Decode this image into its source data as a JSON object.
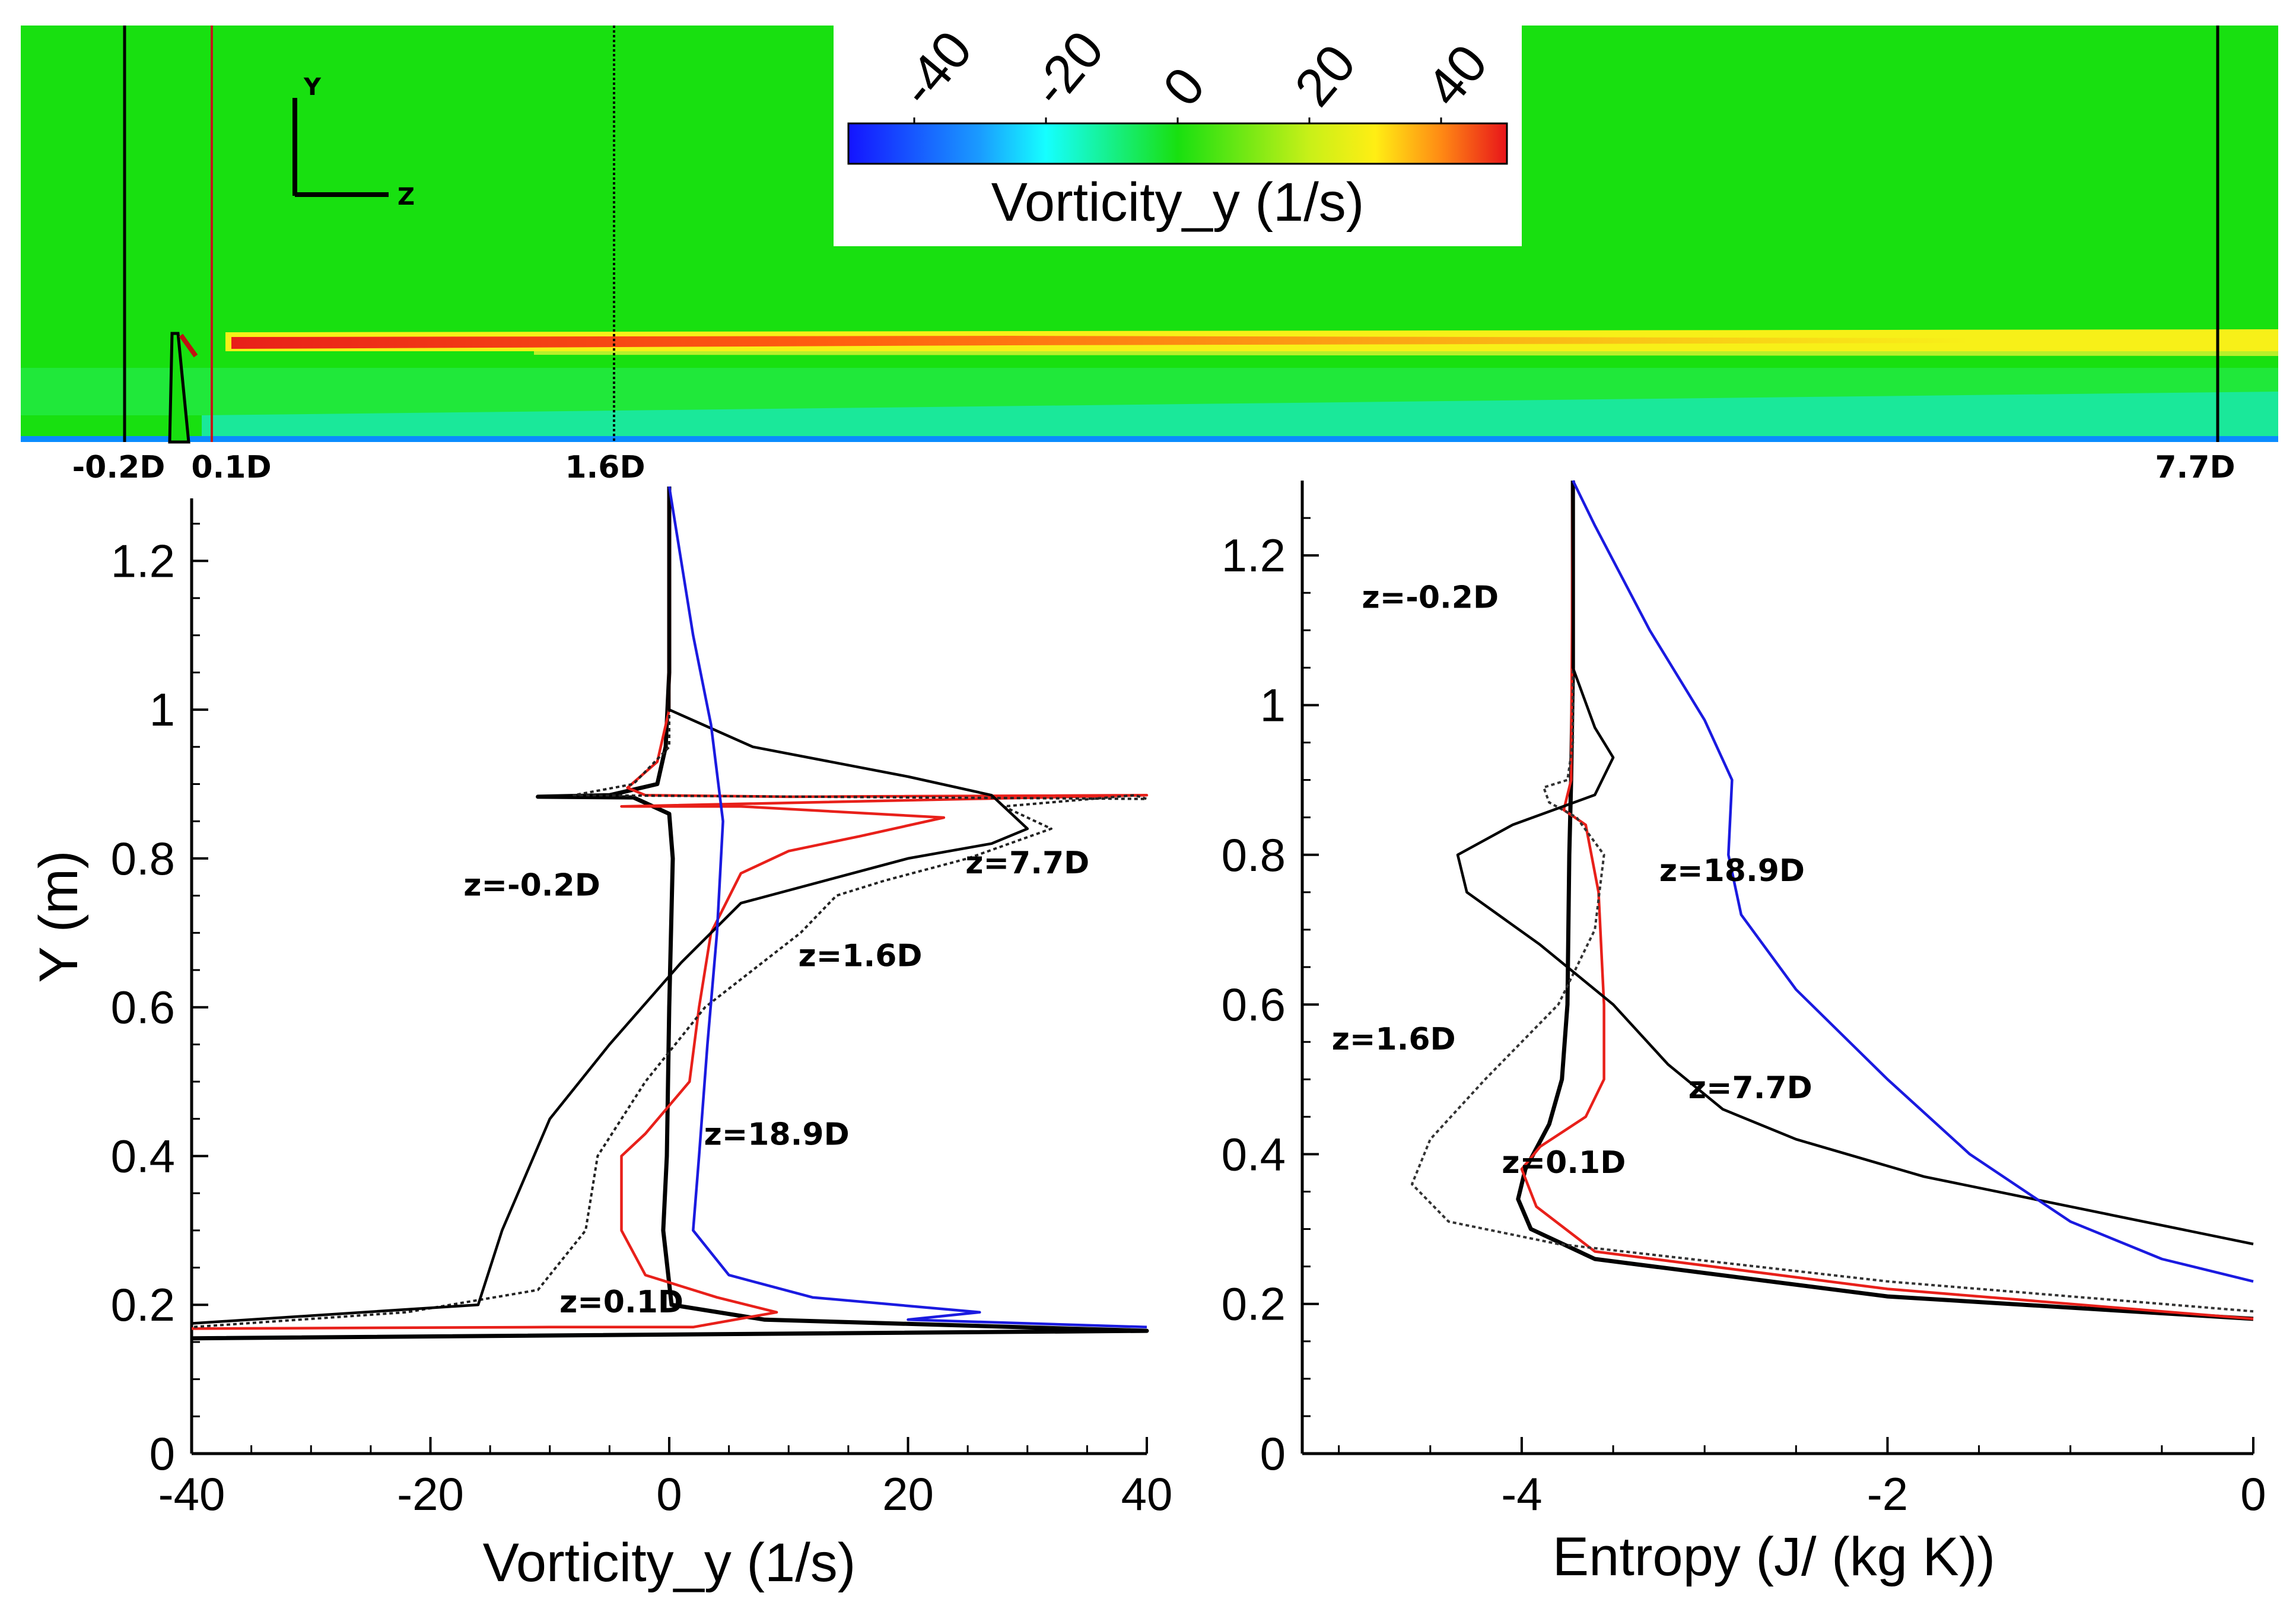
{
  "contour": {
    "colorbar_title": "Vorticity_y (1/s)",
    "colorbar_ticks": [
      "-40",
      "-20",
      "0",
      "20",
      "40"
    ],
    "axis_y": "Y",
    "axis_z": "Z",
    "stations": [
      "-0.2D",
      "0.1D",
      "1.6D",
      "7.7D"
    ],
    "colors": {
      "background": "#18e010",
      "shear": "#f7f018",
      "core": "#e8201a",
      "floor": "#0a8cff"
    }
  },
  "chart_data": [
    {
      "type": "line",
      "title": "",
      "xlabel": "Vorticity_y (1/s)",
      "ylabel": "Y (m)",
      "xlim": [
        -40,
        40
      ],
      "ylim": [
        0,
        1.3
      ],
      "xticks": [
        "-40",
        "-20",
        "0",
        "20",
        "40"
      ],
      "yticks": [
        "0",
        "0.2",
        "0.4",
        "0.6",
        "0.8",
        "1",
        "1.2"
      ],
      "series": [
        {
          "name": "z=-0.2D",
          "color": "#000000",
          "style": "solid-thick",
          "points": [
            [
              0,
              1.3
            ],
            [
              0,
              1.05
            ],
            [
              -0.3,
              0.95
            ],
            [
              -1,
              0.9
            ],
            [
              -5,
              0.885
            ],
            [
              -11,
              0.883
            ],
            [
              -3,
              0.882
            ],
            [
              0,
              0.86
            ],
            [
              0.3,
              0.8
            ],
            [
              0,
              0.6
            ],
            [
              -0.2,
              0.4
            ],
            [
              -0.5,
              0.3
            ],
            [
              0.2,
              0.2
            ],
            [
              8,
              0.18
            ],
            [
              40,
              0.165
            ],
            [
              -40,
              0.155
            ]
          ]
        },
        {
          "name": "z=0.1D",
          "color": "#e8201a",
          "style": "solid",
          "points": [
            [
              0,
              1.3
            ],
            [
              0,
              1.0
            ],
            [
              -1,
              0.93
            ],
            [
              -3.5,
              0.895
            ],
            [
              -2,
              0.885
            ],
            [
              10,
              0.883
            ],
            [
              40,
              0.885
            ],
            [
              -4,
              0.87
            ],
            [
              6,
              0.87
            ],
            [
              23,
              0.855
            ],
            [
              16,
              0.83
            ],
            [
              10,
              0.81
            ],
            [
              6,
              0.78
            ],
            [
              3.5,
              0.7
            ],
            [
              2.5,
              0.6
            ],
            [
              1.7,
              0.5
            ],
            [
              -2,
              0.43
            ],
            [
              -4,
              0.4
            ],
            [
              -4,
              0.3
            ],
            [
              -2,
              0.24
            ],
            [
              4,
              0.21
            ],
            [
              9,
              0.19
            ],
            [
              2,
              0.17
            ],
            [
              -10,
              0.17
            ],
            [
              -40,
              0.168
            ]
          ]
        },
        {
          "name": "z=1.6D",
          "color": "#222222",
          "style": "dotted",
          "points": [
            [
              0,
              1.3
            ],
            [
              0,
              0.95
            ],
            [
              -3,
              0.9
            ],
            [
              -8,
              0.885
            ],
            [
              40,
              0.88
            ],
            [
              39,
              0.885
            ],
            [
              28,
              0.87
            ],
            [
              32,
              0.84
            ],
            [
              25,
              0.8
            ],
            [
              18,
              0.77
            ],
            [
              14,
              0.75
            ],
            [
              11,
              0.7
            ],
            [
              3,
              0.6
            ],
            [
              -2,
              0.5
            ],
            [
              -6,
              0.4
            ],
            [
              -7,
              0.3
            ],
            [
              -11,
              0.22
            ],
            [
              -22,
              0.19
            ],
            [
              -40,
              0.17
            ]
          ]
        },
        {
          "name": "z=7.7D",
          "color": "#000000",
          "style": "solid",
          "points": [
            [
              0,
              1.3
            ],
            [
              0,
              1.0
            ],
            [
              7,
              0.95
            ],
            [
              20,
              0.91
            ],
            [
              27,
              0.885
            ],
            [
              30,
              0.84
            ],
            [
              27,
              0.82
            ],
            [
              20,
              0.8
            ],
            [
              6,
              0.74
            ],
            [
              1,
              0.66
            ],
            [
              -5,
              0.55
            ],
            [
              -10,
              0.45
            ],
            [
              -14,
              0.3
            ],
            [
              -16,
              0.2
            ],
            [
              -40,
              0.175
            ]
          ]
        },
        {
          "name": "z=18.9D",
          "color": "#1a1ae0",
          "style": "solid",
          "points": [
            [
              0,
              1.3
            ],
            [
              2,
              1.1
            ],
            [
              3.5,
              0.98
            ],
            [
              4.5,
              0.85
            ],
            [
              4,
              0.7
            ],
            [
              3.2,
              0.55
            ],
            [
              2.5,
              0.4
            ],
            [
              2,
              0.3
            ],
            [
              5,
              0.24
            ],
            [
              12,
              0.21
            ],
            [
              26,
              0.19
            ],
            [
              20,
              0.18
            ],
            [
              40,
              0.17
            ]
          ]
        }
      ],
      "labels": [
        {
          "text": "z=-0.2D",
          "x": -11.5,
          "y": 0.75
        },
        {
          "text": "z=7.7D",
          "x": 30,
          "y": 0.78
        },
        {
          "text": "z=1.6D",
          "x": 16,
          "y": 0.655
        },
        {
          "text": "z=18.9D",
          "x": 9,
          "y": 0.415
        },
        {
          "text": "z=0.1D",
          "x": -4,
          "y": 0.19
        }
      ]
    },
    {
      "type": "line",
      "title": "",
      "xlabel": "Entropy (J/ (kg K))",
      "ylabel": "",
      "xlim": [
        -5.2,
        0
      ],
      "ylim": [
        0,
        1.3
      ],
      "xticks": [
        "-4",
        "-2",
        "0"
      ],
      "yticks": [
        "0",
        "0.2",
        "0.4",
        "0.6",
        "0.8",
        "1",
        "1.2"
      ],
      "series": [
        {
          "name": "z=-0.2D",
          "color": "#000000",
          "style": "solid-thick",
          "points": [
            [
              -3.72,
              1.3
            ],
            [
              -3.72,
              1.05
            ],
            [
              -3.73,
              0.9
            ],
            [
              -3.74,
              0.8
            ],
            [
              -3.75,
              0.6
            ],
            [
              -3.78,
              0.5
            ],
            [
              -3.85,
              0.44
            ],
            [
              -3.98,
              0.38
            ],
            [
              -4.02,
              0.34
            ],
            [
              -3.95,
              0.3
            ],
            [
              -3.6,
              0.26
            ],
            [
              -2,
              0.21
            ],
            [
              0,
              0.18
            ]
          ]
        },
        {
          "name": "z=0.1D",
          "color": "#e8201a",
          "style": "solid",
          "points": [
            [
              -3.72,
              1.3
            ],
            [
              -3.73,
              0.9
            ],
            [
              -3.77,
              0.86
            ],
            [
              -3.65,
              0.84
            ],
            [
              -3.58,
              0.75
            ],
            [
              -3.55,
              0.6
            ],
            [
              -3.55,
              0.5
            ],
            [
              -3.65,
              0.45
            ],
            [
              -3.9,
              0.41
            ],
            [
              -4,
              0.38
            ],
            [
              -3.92,
              0.33
            ],
            [
              -3.6,
              0.27
            ],
            [
              -2,
              0.22
            ],
            [
              0,
              0.18
            ]
          ]
        },
        {
          "name": "z=1.6D",
          "color": "#333333",
          "style": "dotted",
          "points": [
            [
              -3.72,
              1.3
            ],
            [
              -3.72,
              0.95
            ],
            [
              -3.75,
              0.9
            ],
            [
              -3.88,
              0.89
            ],
            [
              -3.85,
              0.87
            ],
            [
              -3.7,
              0.85
            ],
            [
              -3.55,
              0.8
            ],
            [
              -3.6,
              0.7
            ],
            [
              -3.8,
              0.6
            ],
            [
              -4.2,
              0.5
            ],
            [
              -4.5,
              0.42
            ],
            [
              -4.6,
              0.36
            ],
            [
              -4.4,
              0.31
            ],
            [
              -3.8,
              0.28
            ],
            [
              -2,
              0.23
            ],
            [
              0,
              0.19
            ]
          ]
        },
        {
          "name": "z=7.7D",
          "color": "#000000",
          "style": "solid",
          "points": [
            [
              -3.72,
              1.3
            ],
            [
              -3.72,
              1.05
            ],
            [
              -3.6,
              0.97
            ],
            [
              -3.5,
              0.93
            ],
            [
              -3.6,
              0.88
            ],
            [
              -4.05,
              0.84
            ],
            [
              -4.35,
              0.8
            ],
            [
              -4.3,
              0.75
            ],
            [
              -3.9,
              0.68
            ],
            [
              -3.5,
              0.6
            ],
            [
              -3.2,
              0.52
            ],
            [
              -2.9,
              0.46
            ],
            [
              -2.5,
              0.42
            ],
            [
              -1.8,
              0.37
            ],
            [
              -1,
              0.33
            ],
            [
              0,
              0.28
            ]
          ]
        },
        {
          "name": "z=18.9D",
          "color": "#1a1ae0",
          "style": "solid",
          "points": [
            [
              -3.72,
              1.3
            ],
            [
              -3.6,
              1.24
            ],
            [
              -3.3,
              1.1
            ],
            [
              -3.0,
              0.98
            ],
            [
              -2.85,
              0.9
            ],
            [
              -2.87,
              0.8
            ],
            [
              -2.8,
              0.72
            ],
            [
              -2.5,
              0.62
            ],
            [
              -2.0,
              0.5
            ],
            [
              -1.55,
              0.4
            ],
            [
              -1.0,
              0.31
            ],
            [
              -0.5,
              0.26
            ],
            [
              0,
              0.23
            ]
          ]
        }
      ],
      "labels": [
        {
          "text": "z=-0.2D",
          "x": -4.5,
          "y": 1.13
        },
        {
          "text": "z=18.9D",
          "x": -2.85,
          "y": 0.765
        },
        {
          "text": "z=1.6D",
          "x": -4.7,
          "y": 0.54
        },
        {
          "text": "z=7.7D",
          "x": -2.75,
          "y": 0.475
        },
        {
          "text": "z=0.1D",
          "x": -3.77,
          "y": 0.375
        }
      ]
    }
  ]
}
